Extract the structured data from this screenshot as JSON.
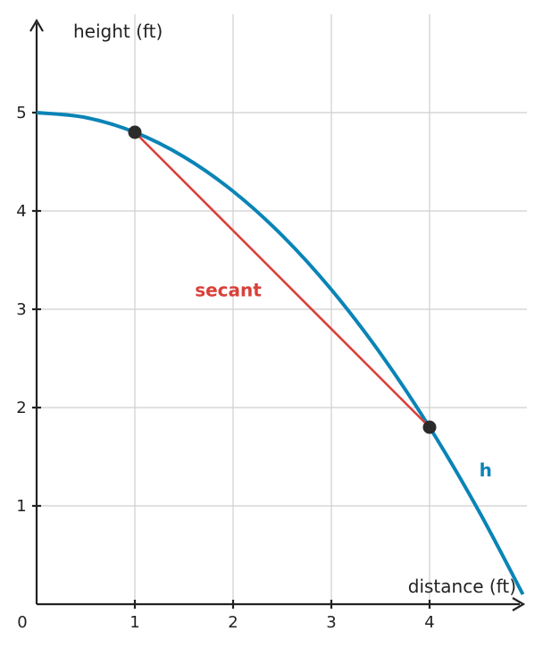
{
  "chart_data": {
    "type": "line",
    "xlabel": "distance (ft)",
    "ylabel": "height (ft)",
    "origin_label": "0",
    "xlim": [
      0,
      4.95
    ],
    "ylim": [
      0,
      5.45
    ],
    "x_ticks": [
      1,
      2,
      3,
      4
    ],
    "y_ticks": [
      1,
      2,
      3,
      4,
      5
    ],
    "grid": true,
    "colors": {
      "curve": "#0a84b6",
      "secant": "#d9403a",
      "points": "#2b2b2b"
    },
    "series": [
      {
        "name": "h",
        "kind": "curve",
        "x": [
          0,
          0.5,
          1,
          1.5,
          2,
          2.5,
          3,
          3.5,
          4,
          4.5,
          4.95
        ],
        "y": [
          5,
          4.95,
          4.8,
          4.55,
          4.2,
          3.75,
          3.2,
          2.55,
          1.8,
          0.95,
          0.1
        ]
      },
      {
        "name": "secant",
        "kind": "segment",
        "x": [
          1,
          4
        ],
        "y": [
          4.8,
          1.8
        ]
      }
    ],
    "points": [
      {
        "x": 1,
        "y": 4.8
      },
      {
        "x": 4,
        "y": 1.8
      }
    ],
    "annotations": [
      {
        "text": "secant",
        "x": 1.95,
        "y": 3.13,
        "series": "secant"
      },
      {
        "text": "h",
        "x": 4.57,
        "y": 1.3,
        "series": "h"
      }
    ]
  }
}
